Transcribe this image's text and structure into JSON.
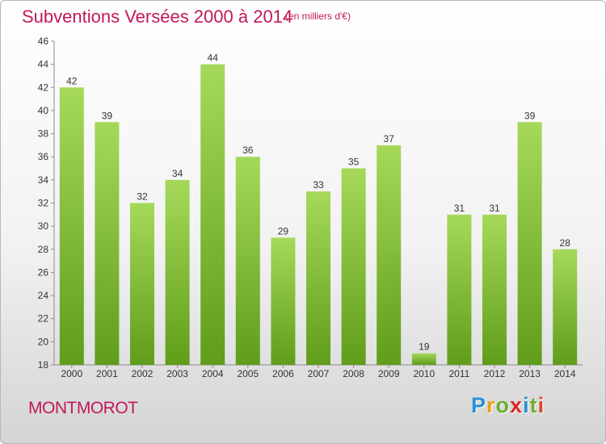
{
  "header": {
    "title": "Subventions Versées 2000 à 2014",
    "unit": "(en milliers d'€)"
  },
  "footer": {
    "commune": "MONTMOROT",
    "logo_letters": [
      "P",
      "r",
      "o",
      "x",
      "i",
      "t",
      "i"
    ],
    "logo_colors": [
      "#2a8fd6",
      "#e8a21a",
      "#6ab02e",
      "#d9262b",
      "#2a8fd6",
      "#6ab02e",
      "#e0472b"
    ]
  },
  "colors": {
    "bar_light": "#a6d95a",
    "bar_dark": "#5f9d1a",
    "axis": "#8a8a8a",
    "text": "#333333",
    "accent": "#c2185b"
  },
  "chart_data": {
    "type": "bar",
    "categories": [
      "2000",
      "2001",
      "2002",
      "2003",
      "2004",
      "2005",
      "2006",
      "2007",
      "2008",
      "2009",
      "2010",
      "2011",
      "2012",
      "2013",
      "2014"
    ],
    "values": [
      42,
      39,
      32,
      34,
      44,
      36,
      29,
      33,
      35,
      37,
      19,
      31,
      31,
      39,
      28
    ],
    "title": "Subventions Versées 2000 à 2014",
    "xlabel": "",
    "ylabel": "",
    "ylim": [
      18,
      46
    ],
    "yticks": [
      18,
      20,
      22,
      24,
      26,
      28,
      30,
      32,
      34,
      36,
      38,
      40,
      42,
      44,
      46
    ],
    "grid": false,
    "legend": "none"
  }
}
